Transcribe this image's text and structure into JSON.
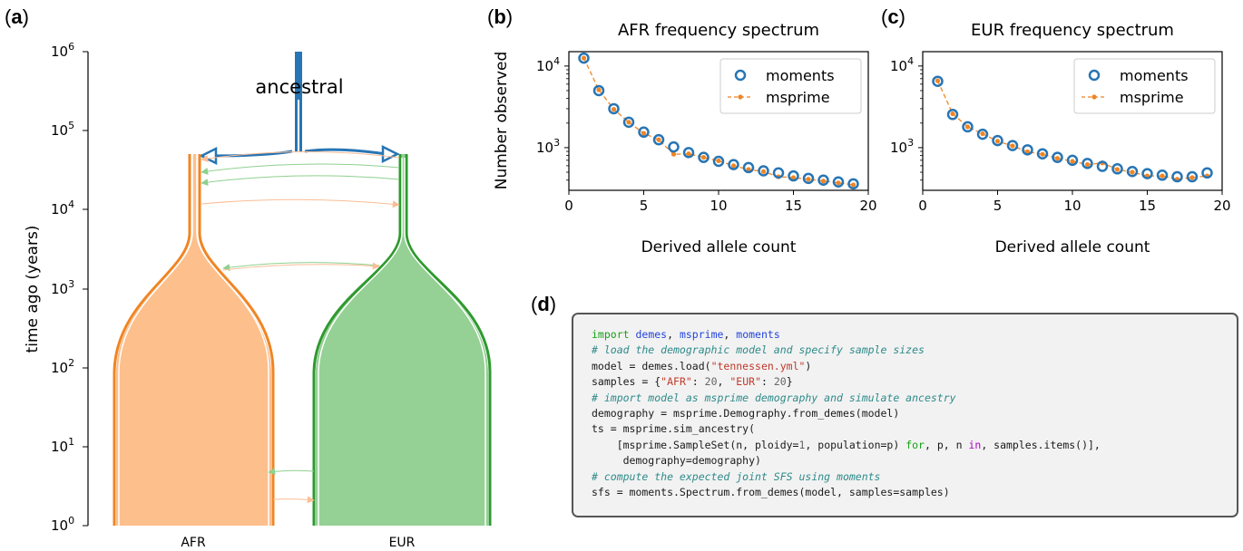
{
  "panels": {
    "a": {
      "label": "a",
      "ylabel": "time ago (years)",
      "yticks": [
        "10",
        "10",
        "10",
        "10",
        "10",
        "10",
        "10"
      ],
      "ytick_exps": [
        "0",
        "1",
        "2",
        "3",
        "4",
        "5",
        "6"
      ],
      "ancestral_label": "ancestral",
      "pop_labels": [
        "AFR",
        "EUR"
      ],
      "colors": {
        "afr": "#f08524",
        "afr_fill": "#fdbf8c",
        "eur": "#2e9a2e",
        "eur_fill": "#95d095",
        "anc": "#2775b4",
        "mig_green": "#8fd08f",
        "mig_orange": "#fbbd95"
      }
    },
    "b": {
      "label": "b",
      "title": "AFR frequency spectrum",
      "xlabel": "Derived allele count",
      "ylabel": "Number observed"
    },
    "c": {
      "label": "c",
      "title": "EUR frequency spectrum",
      "xlabel": "Derived allele count"
    },
    "d": {
      "label": "d",
      "code_lines": [
        [
          [
            "kw",
            "import "
          ],
          [
            "nm",
            "demes"
          ],
          [
            "",
            "",
            ""
          ],
          [
            "",
            ", "
          ],
          [
            "nm",
            "msprime"
          ],
          [
            "",
            ", "
          ],
          [
            "nm",
            "moments"
          ]
        ],
        [
          [
            "cm",
            "# load the demographic model and specify sample sizes"
          ]
        ],
        [
          [
            "",
            "model = demes.load("
          ],
          [
            "st",
            "\"tennessen.yml\""
          ],
          [
            "",
            ")"
          ]
        ],
        [
          [
            "",
            "samples = {"
          ],
          [
            "st",
            "\"AFR\""
          ],
          [
            "",
            ": "
          ],
          [
            "nu",
            "20"
          ],
          [
            "",
            ", "
          ],
          [
            "st",
            "\"EUR\""
          ],
          [
            "",
            ": "
          ],
          [
            "nu",
            "20"
          ],
          [
            "",
            "}"
          ]
        ],
        [
          [
            "cm",
            "# import model as msprime demography and simulate ancestry"
          ]
        ],
        [
          [
            "",
            "demography = msprime.Demography.from_demes(model)"
          ]
        ],
        [
          [
            "",
            "ts = msprime.sim_ancestry("
          ]
        ],
        [
          [
            "",
            "    [msprime.SampleSet(n, ploidy="
          ],
          [
            "nu",
            "1"
          ],
          [
            "",
            ", population=p) "
          ],
          [
            "kw",
            "for"
          ],
          [
            "",
            ", p, n "
          ],
          [
            "pu",
            "in"
          ],
          [
            "",
            ", samples.items()],"
          ]
        ],
        [
          [
            "",
            "     demography=demography)"
          ]
        ],
        [
          [
            "cm",
            "# compute the expected joint SFS using moments"
          ]
        ],
        [
          [
            "",
            "sfs = moments.Spectrum.from_demes(model, samples=samples)"
          ]
        ]
      ]
    }
  },
  "chart_data": [
    {
      "type": "scatter",
      "title": "AFR frequency spectrum",
      "xlabel": "Derived allele count",
      "ylabel": "Number observed",
      "xlim": [
        0,
        20
      ],
      "ylim": [
        300,
        15000
      ],
      "yscale": "log",
      "xticks": [
        "0",
        "5",
        "10",
        "15",
        "20"
      ],
      "yticks": [
        "10",
        "10"
      ],
      "ytick_exps": [
        "3",
        "4"
      ],
      "legend": [
        "moments",
        "msprime"
      ],
      "legend_position": "top-right",
      "series": [
        {
          "name": "moments",
          "style": "open-circle",
          "color": "#2775b4",
          "x": [
            1,
            2,
            3,
            4,
            5,
            6,
            7,
            8,
            9,
            10,
            11,
            12,
            13,
            14,
            15,
            16,
            17,
            18,
            19
          ],
          "y": [
            12500,
            5000,
            3000,
            2050,
            1550,
            1250,
            1020,
            870,
            760,
            680,
            620,
            570,
            520,
            490,
            450,
            420,
            400,
            380,
            360
          ]
        },
        {
          "name": "msprime",
          "style": "dashed-dot",
          "color": "#f08524",
          "x": [
            1,
            2,
            3,
            4,
            5,
            6,
            7,
            8,
            9,
            10,
            11,
            12,
            13,
            14,
            15,
            16,
            17,
            18,
            19
          ],
          "y": [
            12500,
            5100,
            2950,
            2050,
            1500,
            1250,
            830,
            840,
            760,
            690,
            600,
            540,
            510,
            440,
            430,
            410,
            390,
            370,
            350
          ]
        }
      ]
    },
    {
      "type": "scatter",
      "title": "EUR frequency spectrum",
      "xlabel": "Derived allele count",
      "xlim": [
        0,
        20
      ],
      "ylim": [
        300,
        15000
      ],
      "yscale": "log",
      "xticks": [
        "0",
        "5",
        "10",
        "15",
        "20"
      ],
      "yticks": [
        "10",
        "10"
      ],
      "ytick_exps": [
        "3",
        "4"
      ],
      "legend": [
        "moments",
        "msprime"
      ],
      "legend_position": "top-right",
      "series": [
        {
          "name": "moments",
          "style": "open-circle",
          "color": "#2775b4",
          "x": [
            1,
            2,
            3,
            4,
            5,
            6,
            7,
            8,
            9,
            10,
            11,
            12,
            13,
            14,
            15,
            16,
            17,
            18,
            19
          ],
          "y": [
            6500,
            2550,
            1800,
            1460,
            1220,
            1060,
            940,
            840,
            760,
            700,
            640,
            590,
            550,
            510,
            480,
            460,
            440,
            440,
            490
          ]
        },
        {
          "name": "msprime",
          "style": "dashed-dot",
          "color": "#f08524",
          "x": [
            1,
            2,
            3,
            4,
            5,
            6,
            7,
            8,
            9,
            10,
            11,
            12,
            13,
            14,
            15,
            16,
            17,
            18,
            19
          ],
          "y": [
            6600,
            2600,
            1800,
            1480,
            1200,
            1050,
            890,
            830,
            740,
            680,
            620,
            650,
            540,
            500,
            450,
            450,
            410,
            430,
            450
          ]
        }
      ]
    }
  ]
}
